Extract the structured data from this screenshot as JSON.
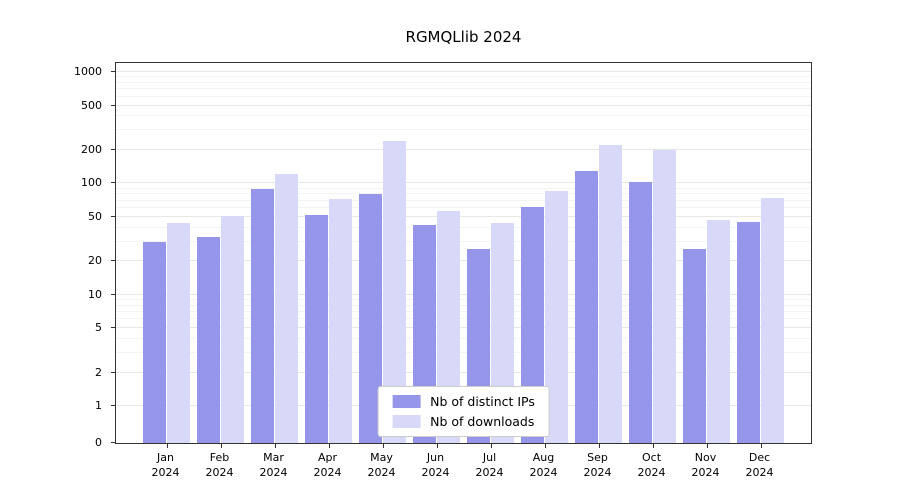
{
  "title": "RGMQLlib 2024",
  "chart_data": {
    "type": "bar",
    "title": "RGMQLlib 2024",
    "categories": [
      "Jan",
      "Feb",
      "Mar",
      "Apr",
      "May",
      "Jun",
      "Jul",
      "Aug",
      "Sep",
      "Oct",
      "Nov",
      "Dec"
    ],
    "year": "2024",
    "series": [
      {
        "name": "Nb of distinct IPs",
        "color": "#9595EA",
        "values": [
          30,
          33,
          90,
          52,
          81,
          42,
          26,
          61,
          130,
          103,
          26,
          45
        ]
      },
      {
        "name": "Nb of downloads",
        "color": "#D8D8F8",
        "values": [
          44,
          51,
          122,
          72,
          240,
          57,
          44,
          85,
          220,
          200,
          47,
          74
        ]
      }
    ],
    "yscale": "log",
    "y_ticks": [
      0,
      1,
      2,
      5,
      10,
      20,
      50,
      100,
      200,
      500,
      1000
    ],
    "y_minor_ticks": [
      3,
      4,
      6,
      7,
      8,
      9,
      30,
      40,
      60,
      70,
      80,
      90,
      300,
      400,
      600,
      700,
      800,
      900
    ],
    "ylim": [
      0,
      1000
    ],
    "grid": true,
    "legend_position": "bottom-center"
  }
}
